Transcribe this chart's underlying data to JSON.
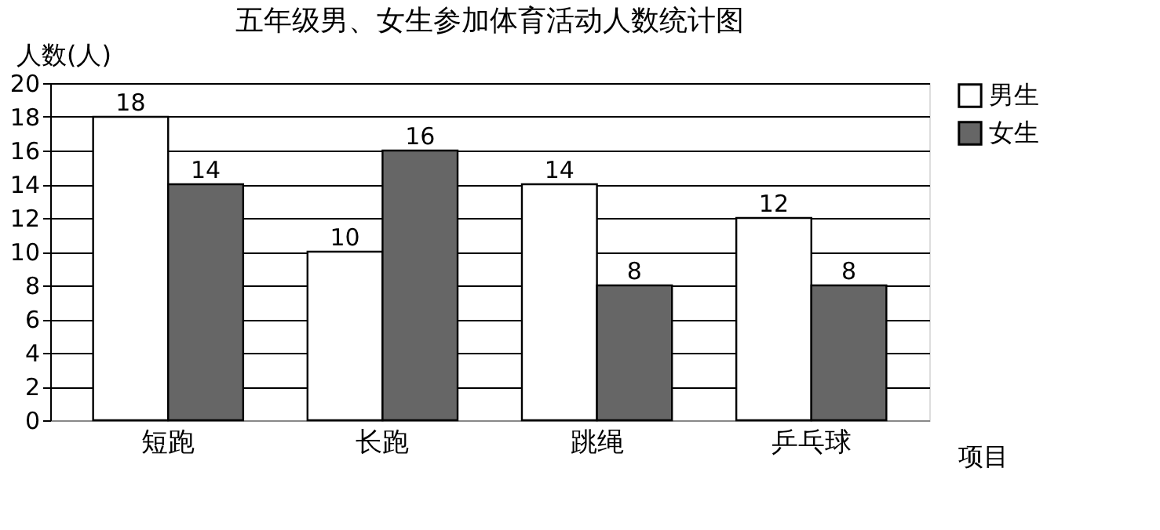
{
  "chart_data": {
    "type": "bar",
    "title": "五年级男、女生参加体育活动人数统计图",
    "xlabel": "项目",
    "ylabel": "人数(人)",
    "categories": [
      "短跑",
      "长跑",
      "跳绳",
      "乒乓球"
    ],
    "series": [
      {
        "name": "男生",
        "color": "#ffffff",
        "values": [
          18,
          10,
          14,
          12
        ]
      },
      {
        "name": "女生",
        "color": "#666666",
        "values": [
          14,
          16,
          8,
          8
        ]
      }
    ],
    "ylim": [
      0,
      20
    ],
    "yticks": [
      0,
      2,
      4,
      6,
      8,
      10,
      12,
      14,
      16,
      18,
      20
    ],
    "grid": "y",
    "legend": "right",
    "data_labels": true
  }
}
